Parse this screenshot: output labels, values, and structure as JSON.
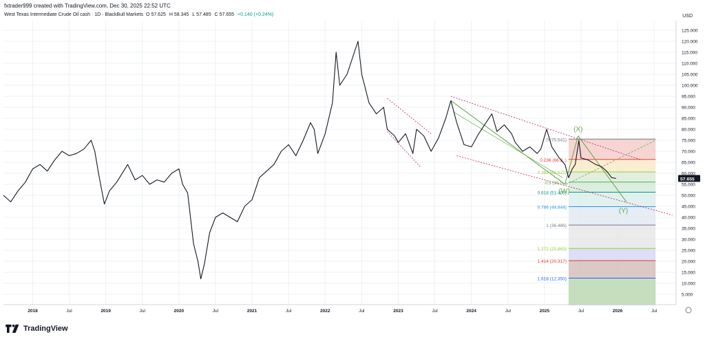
{
  "header": {
    "created_by": "fxtrader999 created with TradingView.com, Dec 30, 2025 22:52 UTC",
    "symbol": "West Texas Intermediate Crude Oil cash · 1D · BlackBull Markets",
    "o_label": "O",
    "o_value": "57.625",
    "h_label": "H",
    "h_value": "58.345",
    "l_label": "L",
    "l_value": "57.485",
    "c_label": "C",
    "c_value": "57.655",
    "change": "+0.140 (+0.24%)"
  },
  "currency": "USD",
  "footer": {
    "brand": "TradingView"
  },
  "colors": {
    "price": "#131722",
    "grid": "#eef0f3",
    "up": "#089981",
    "channel": "#c2185b",
    "wave": "#6aa84f",
    "fib_axis": "#787b86"
  },
  "chart_data": {
    "type": "line",
    "title": "West Texas Intermediate Crude Oil cash · 1D · BlackBull Markets",
    "xlabel": "",
    "ylabel": "USD",
    "ylim": [
      0,
      130
    ],
    "y_ticks": [
      "5.000",
      "10.000",
      "15.000",
      "20.000",
      "25.000",
      "30.000",
      "35.000",
      "40.000",
      "45.000",
      "50.000",
      "55.000",
      "60.000",
      "65.000",
      "70.000",
      "75.000",
      "80.000",
      "85.000",
      "90.000",
      "95.000",
      "100.000",
      "105.000",
      "110.000",
      "115.000",
      "120.000",
      "125.000"
    ],
    "x_ticks": [
      {
        "label": "2018",
        "t": 2018.0
      },
      {
        "label": "Jul",
        "t": 2018.5
      },
      {
        "label": "2019",
        "t": 2019.0
      },
      {
        "label": "Jul",
        "t": 2019.5
      },
      {
        "label": "2020",
        "t": 2020.0
      },
      {
        "label": "Jul",
        "t": 2020.5
      },
      {
        "label": "2021",
        "t": 2021.0
      },
      {
        "label": "Jul",
        "t": 2021.5
      },
      {
        "label": "2022",
        "t": 2022.0
      },
      {
        "label": "Jul",
        "t": 2022.5
      },
      {
        "label": "2023",
        "t": 2023.0
      },
      {
        "label": "Jul",
        "t": 2023.5
      },
      {
        "label": "2024",
        "t": 2024.0
      },
      {
        "label": "Jul",
        "t": 2024.5
      },
      {
        "label": "2025",
        "t": 2025.0
      },
      {
        "label": "Jul",
        "t": 2025.5
      },
      {
        "label": "2026",
        "t": 2026.0
      },
      {
        "label": "Jul",
        "t": 2026.5
      }
    ],
    "series": [
      {
        "values": [
          [
            2017.6,
            50
          ],
          [
            2017.7,
            47
          ],
          [
            2017.8,
            52
          ],
          [
            2017.9,
            56
          ],
          [
            2018.0,
            62
          ],
          [
            2018.1,
            64
          ],
          [
            2018.2,
            61
          ],
          [
            2018.3,
            66
          ],
          [
            2018.4,
            70
          ],
          [
            2018.5,
            68
          ],
          [
            2018.6,
            69
          ],
          [
            2018.7,
            71
          ],
          [
            2018.8,
            75
          ],
          [
            2018.85,
            70
          ],
          [
            2018.9,
            60
          ],
          [
            2018.98,
            46
          ],
          [
            2019.05,
            52
          ],
          [
            2019.15,
            56
          ],
          [
            2019.3,
            64
          ],
          [
            2019.4,
            57
          ],
          [
            2019.5,
            59
          ],
          [
            2019.6,
            55
          ],
          [
            2019.7,
            57
          ],
          [
            2019.8,
            56
          ],
          [
            2019.9,
            60
          ],
          [
            2020.0,
            62
          ],
          [
            2020.05,
            55
          ],
          [
            2020.12,
            51
          ],
          [
            2020.2,
            28
          ],
          [
            2020.26,
            20
          ],
          [
            2020.3,
            12
          ],
          [
            2020.35,
            19
          ],
          [
            2020.42,
            33
          ],
          [
            2020.5,
            40
          ],
          [
            2020.6,
            42
          ],
          [
            2020.7,
            40
          ],
          [
            2020.8,
            38
          ],
          [
            2020.9,
            45
          ],
          [
            2021.0,
            48
          ],
          [
            2021.1,
            58
          ],
          [
            2021.2,
            61
          ],
          [
            2021.3,
            64
          ],
          [
            2021.4,
            70
          ],
          [
            2021.5,
            73
          ],
          [
            2021.6,
            68
          ],
          [
            2021.7,
            75
          ],
          [
            2021.8,
            83
          ],
          [
            2021.85,
            80
          ],
          [
            2021.9,
            69
          ],
          [
            2022.0,
            78
          ],
          [
            2022.1,
            92
          ],
          [
            2022.15,
            115
          ],
          [
            2022.2,
            100
          ],
          [
            2022.3,
            105
          ],
          [
            2022.4,
            115
          ],
          [
            2022.45,
            120
          ],
          [
            2022.5,
            105
          ],
          [
            2022.6,
            92
          ],
          [
            2022.7,
            87
          ],
          [
            2022.8,
            90
          ],
          [
            2022.85,
            80
          ],
          [
            2022.95,
            77
          ],
          [
            2023.0,
            74
          ],
          [
            2023.1,
            78
          ],
          [
            2023.2,
            69
          ],
          [
            2023.25,
            80
          ],
          [
            2023.35,
            77
          ],
          [
            2023.45,
            70
          ],
          [
            2023.55,
            76
          ],
          [
            2023.65,
            85
          ],
          [
            2023.72,
            93
          ],
          [
            2023.8,
            83
          ],
          [
            2023.9,
            73
          ],
          [
            2024.0,
            72
          ],
          [
            2024.1,
            78
          ],
          [
            2024.2,
            83
          ],
          [
            2024.28,
            87
          ],
          [
            2024.35,
            79
          ],
          [
            2024.45,
            82
          ],
          [
            2024.55,
            78
          ],
          [
            2024.6,
            74
          ],
          [
            2024.7,
            70
          ],
          [
            2024.8,
            72
          ],
          [
            2024.9,
            69
          ],
          [
            2024.95,
            71
          ],
          [
            2025.03,
            80
          ],
          [
            2025.1,
            72
          ],
          [
            2025.2,
            67
          ],
          [
            2025.28,
            64
          ],
          [
            2025.33,
            58
          ],
          [
            2025.38,
            62
          ],
          [
            2025.42,
            64
          ],
          [
            2025.47,
            75
          ],
          [
            2025.5,
            67
          ],
          [
            2025.6,
            66
          ],
          [
            2025.7,
            64
          ],
          [
            2025.78,
            63
          ],
          [
            2025.85,
            61
          ],
          [
            2025.92,
            58
          ],
          [
            2025.98,
            57.655
          ]
        ]
      }
    ],
    "last_price_label": "57.655",
    "fib_levels": [
      {
        "label": "0 (75.541)",
        "value": 75.541,
        "color": "#787b86"
      },
      {
        "label": "0.236 (66.3..)",
        "value": 66.3,
        "color": "#e53935"
      },
      {
        "label": "0.382 (60.622)",
        "value": 60.622,
        "color": "#9acd32"
      },
      {
        "label": "0.5 (56.0..)",
        "value": 56.0,
        "color": "#4caf50"
      },
      {
        "label": "0.618 (51.405)",
        "value": 51.405,
        "color": "#009688"
      },
      {
        "label": "0.786 (44.844)",
        "value": 44.844,
        "color": "#2196f3"
      },
      {
        "label": "1 (36.486)",
        "value": 36.486,
        "color": "#787b86"
      },
      {
        "label": "1.272 (25.863)",
        "value": 25.863,
        "color": "#9acd32"
      },
      {
        "label": "1.414 (20.317)",
        "value": 20.317,
        "color": "#e53935"
      },
      {
        "label": "1.618 (12.350)",
        "value": 12.35,
        "color": "#2962ff"
      }
    ],
    "wave_labels": [
      {
        "label": "(X)",
        "t": 2025.46,
        "v": 79
      },
      {
        "label": "(W)",
        "t": 2025.27,
        "v": 51
      },
      {
        "label": "(Y)",
        "t": 2026.08,
        "v": 42
      }
    ],
    "grid": true
  }
}
